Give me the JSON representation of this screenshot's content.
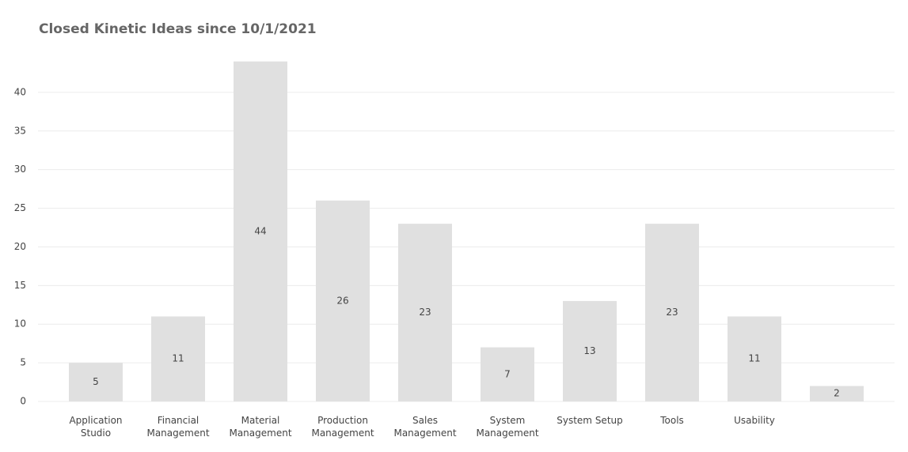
{
  "chart_data": {
    "type": "bar",
    "title": "Closed Kinetic Ideas since 10/1/2021",
    "categories": [
      "Application Studio",
      "Financial Management",
      "Material Management",
      "Production Management",
      "Sales Management",
      "System Management",
      "System Setup",
      "Tools",
      "Usability",
      null
    ],
    "values": [
      5,
      11,
      44,
      26,
      23,
      7,
      13,
      23,
      11,
      2
    ],
    "color": "#e0e0e0",
    "ylim": [
      0,
      45
    ],
    "yticks": [
      0,
      5,
      10,
      15,
      20,
      25,
      30,
      35,
      40
    ],
    "grid": true
  }
}
